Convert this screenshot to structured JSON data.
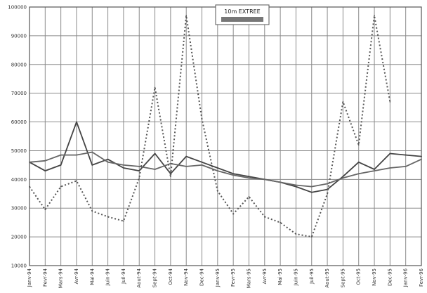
{
  "chart_data": {
    "type": "line",
    "title": "",
    "xlabel": "",
    "ylabel": "",
    "ylim": [
      10000,
      100000
    ],
    "y_ticks": [
      "10000",
      "20000",
      "30000",
      "40000",
      "50000",
      "60000",
      "70000",
      "80000",
      "90000",
      "100000"
    ],
    "categories": [
      "Janv-94",
      "Fevr-94",
      "Mars-94",
      "Avr-94",
      "Mai-94",
      "Juin-94",
      "Juil-94",
      "Aout-94",
      "Sept-94",
      "Oct-94",
      "Nov-94",
      "Dec-94",
      "Janv-95",
      "Fevr-95",
      "Mars-95",
      "Avr-95",
      "Mai-95",
      "Juin-95",
      "Juil-95",
      "Aout-95",
      "Sept-95",
      "Oct-95",
      "Nov-95",
      "Dec-95",
      "Janv-96",
      "Fevr-96"
    ],
    "grid": true,
    "legend": {
      "position": "top-center",
      "entries": [
        "10m EXTREE"
      ]
    },
    "series": [
      {
        "name": "10m EXTREE",
        "style": "solid",
        "color": "#444444",
        "values": [
          46000,
          43000,
          45000,
          60000,
          45000,
          47000,
          44000,
          43000,
          49000,
          42000,
          48000,
          46000,
          44000,
          42000,
          41000,
          40000,
          39000,
          37500,
          35500,
          36500,
          41000,
          46000,
          43500,
          49000,
          48500,
          48000
        ]
      },
      {
        "style": "solid",
        "color": "#666666",
        "values": [
          46000,
          46500,
          48500,
          48500,
          49500,
          46000,
          45000,
          44500,
          43500,
          45500,
          44500,
          45000,
          43000,
          41500,
          40500,
          40000,
          39000,
          38000,
          37500,
          38500,
          40500,
          42000,
          43000,
          44000,
          44500,
          47000
        ]
      },
      {
        "style": "dotted",
        "color": "#555555",
        "values": [
          37500,
          29500,
          37500,
          39500,
          29000,
          27000,
          25500,
          40500,
          72000,
          41000,
          97000,
          61000,
          36000,
          28000,
          34000,
          27000,
          25000,
          21000,
          20000,
          35000,
          67000,
          52000,
          97000,
          67000,
          null,
          null
        ]
      }
    ]
  }
}
